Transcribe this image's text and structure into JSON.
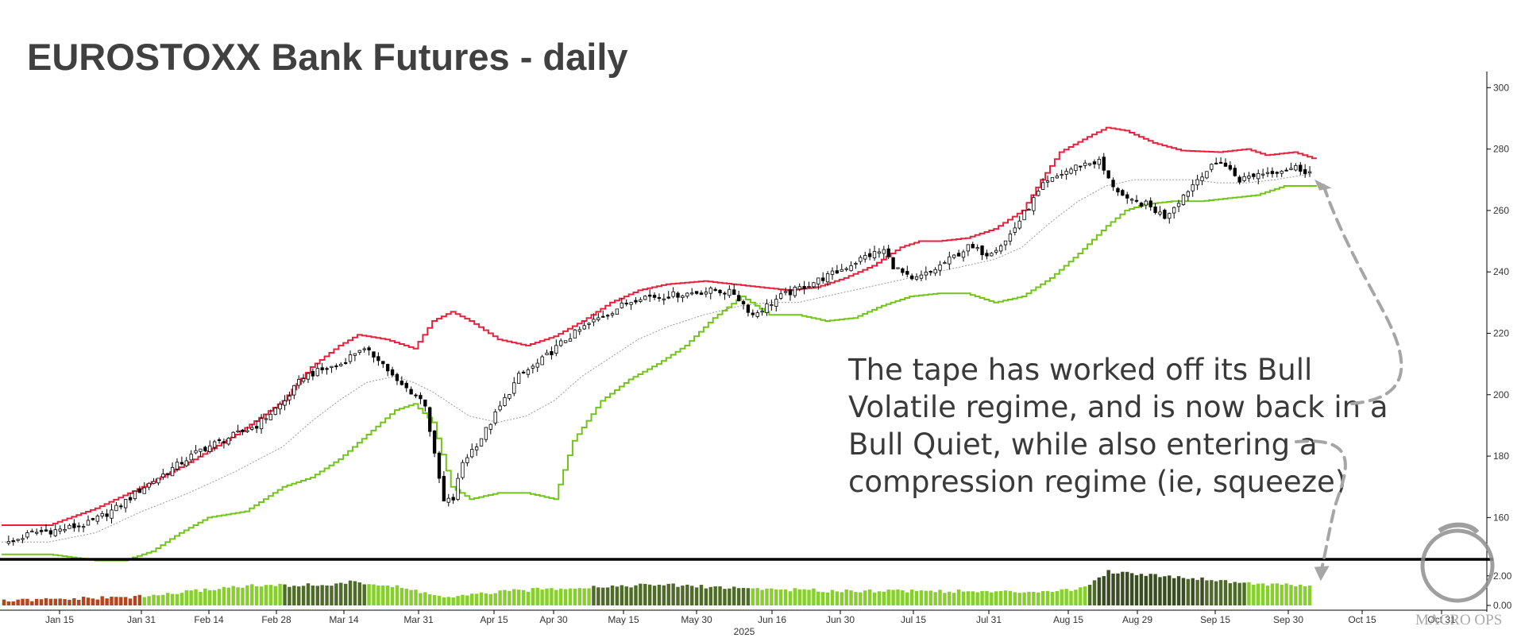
{
  "chart_data": {
    "type": "candlestick",
    "title": "EUROSTOXX Bank Futures - daily",
    "year_label": "2025",
    "ylim": [
      150,
      305
    ],
    "y_ticks": [
      160,
      180,
      200,
      220,
      240,
      260,
      280,
      300
    ],
    "x_ticks": [
      "Jan 15",
      "Jan 31",
      "Feb 14",
      "Feb 28",
      "Mar 14",
      "Mar 31",
      "Apr 15",
      "Apr 30",
      "May 15",
      "May 30",
      "Jun 16",
      "Jun 30",
      "Jul 15",
      "Jul 31",
      "Aug 15",
      "Aug 29",
      "Sep 15",
      "Sep 30",
      "Oct 15",
      "Oct 31"
    ],
    "upper_band_anchors": [
      [
        0,
        157.5
      ],
      [
        10,
        157.5
      ],
      [
        20,
        163
      ],
      [
        30,
        170
      ],
      [
        40,
        178
      ],
      [
        50,
        187
      ],
      [
        60,
        198
      ],
      [
        66,
        209
      ],
      [
        72,
        216
      ],
      [
        76,
        219.5
      ],
      [
        82,
        218
      ],
      [
        88,
        215
      ],
      [
        92,
        224
      ],
      [
        96,
        227
      ],
      [
        100,
        224
      ],
      [
        106,
        218
      ],
      [
        112,
        216
      ],
      [
        118,
        219
      ],
      [
        124,
        224
      ],
      [
        130,
        230
      ],
      [
        136,
        234
      ],
      [
        142,
        236
      ],
      [
        150,
        237
      ],
      [
        156,
        236
      ],
      [
        162,
        235
      ],
      [
        168,
        234
      ],
      [
        174,
        235
      ],
      [
        180,
        238
      ],
      [
        186,
        242
      ],
      [
        192,
        248
      ],
      [
        196,
        250
      ],
      [
        200,
        250
      ],
      [
        206,
        251
      ],
      [
        212,
        254
      ],
      [
        218,
        260
      ],
      [
        222,
        270
      ],
      [
        226,
        279
      ],
      [
        232,
        284
      ],
      [
        236,
        287
      ],
      [
        240,
        286
      ],
      [
        246,
        282
      ],
      [
        252,
        279.5
      ],
      [
        260,
        279
      ],
      [
        266,
        280
      ],
      [
        270,
        278
      ],
      [
        276,
        279
      ],
      [
        280,
        277
      ]
    ],
    "lower_band_anchors": [
      [
        0,
        148
      ],
      [
        10,
        148
      ],
      [
        20,
        146
      ],
      [
        26,
        146
      ],
      [
        32,
        149
      ],
      [
        38,
        155
      ],
      [
        44,
        160
      ],
      [
        52,
        162
      ],
      [
        60,
        170
      ],
      [
        66,
        173
      ],
      [
        72,
        179
      ],
      [
        78,
        187
      ],
      [
        84,
        195
      ],
      [
        88,
        197
      ],
      [
        92,
        191
      ],
      [
        96,
        170
      ],
      [
        100,
        166
      ],
      [
        106,
        168
      ],
      [
        112,
        168
      ],
      [
        118,
        166
      ],
      [
        122,
        185
      ],
      [
        128,
        198
      ],
      [
        134,
        205
      ],
      [
        140,
        210
      ],
      [
        146,
        216
      ],
      [
        152,
        225
      ],
      [
        158,
        232
      ],
      [
        164,
        226
      ],
      [
        170,
        226
      ],
      [
        176,
        224
      ],
      [
        182,
        225
      ],
      [
        188,
        229
      ],
      [
        194,
        232
      ],
      [
        200,
        233
      ],
      [
        206,
        233
      ],
      [
        212,
        230
      ],
      [
        218,
        232
      ],
      [
        224,
        238
      ],
      [
        230,
        246
      ],
      [
        236,
        255
      ],
      [
        240,
        260
      ],
      [
        244,
        262
      ],
      [
        250,
        263
      ],
      [
        256,
        263
      ],
      [
        262,
        264
      ],
      [
        268,
        265
      ],
      [
        274,
        268
      ],
      [
        280,
        268
      ]
    ],
    "ma_anchors": [
      [
        0,
        152
      ],
      [
        10,
        152
      ],
      [
        20,
        155
      ],
      [
        30,
        162
      ],
      [
        40,
        168
      ],
      [
        50,
        175
      ],
      [
        60,
        183
      ],
      [
        66,
        191
      ],
      [
        72,
        198
      ],
      [
        78,
        204
      ],
      [
        84,
        206
      ],
      [
        88,
        204
      ],
      [
        92,
        201
      ],
      [
        96,
        197
      ],
      [
        100,
        193
      ],
      [
        106,
        191
      ],
      [
        112,
        193
      ],
      [
        118,
        198
      ],
      [
        124,
        206
      ],
      [
        130,
        212
      ],
      [
        136,
        218
      ],
      [
        142,
        222
      ],
      [
        150,
        226
      ],
      [
        158,
        229
      ],
      [
        164,
        230
      ],
      [
        170,
        230
      ],
      [
        176,
        232
      ],
      [
        182,
        234
      ],
      [
        188,
        236
      ],
      [
        194,
        238
      ],
      [
        200,
        240
      ],
      [
        206,
        242
      ],
      [
        212,
        244
      ],
      [
        218,
        248
      ],
      [
        224,
        256
      ],
      [
        230,
        263
      ],
      [
        236,
        268
      ],
      [
        242,
        270
      ],
      [
        248,
        270
      ],
      [
        254,
        270
      ],
      [
        260,
        269
      ],
      [
        266,
        269
      ],
      [
        272,
        270
      ],
      [
        276,
        271
      ],
      [
        280,
        272
      ]
    ],
    "close_anchors": [
      [
        0,
        151
      ],
      [
        6,
        155
      ],
      [
        12,
        156
      ],
      [
        18,
        158
      ],
      [
        24,
        163
      ],
      [
        30,
        170
      ],
      [
        36,
        176
      ],
      [
        42,
        182
      ],
      [
        48,
        186
      ],
      [
        54,
        190
      ],
      [
        60,
        198
      ],
      [
        64,
        206
      ],
      [
        68,
        208
      ],
      [
        72,
        210
      ],
      [
        76,
        215
      ],
      [
        80,
        212
      ],
      [
        84,
        204
      ],
      [
        88,
        200
      ],
      [
        90,
        197
      ],
      [
        92,
        180
      ],
      [
        94,
        165
      ],
      [
        96,
        166
      ],
      [
        98,
        178
      ],
      [
        102,
        186
      ],
      [
        106,
        196
      ],
      [
        110,
        206
      ],
      [
        114,
        210
      ],
      [
        120,
        218
      ],
      [
        126,
        224
      ],
      [
        132,
        229
      ],
      [
        136,
        232
      ],
      [
        140,
        232
      ],
      [
        146,
        233
      ],
      [
        152,
        234
      ],
      [
        156,
        233
      ],
      [
        160,
        226
      ],
      [
        166,
        232
      ],
      [
        172,
        236
      ],
      [
        178,
        240
      ],
      [
        184,
        245
      ],
      [
        188,
        247
      ],
      [
        190,
        242
      ],
      [
        194,
        237
      ],
      [
        198,
        240
      ],
      [
        202,
        244
      ],
      [
        206,
        248
      ],
      [
        210,
        246
      ],
      [
        214,
        250
      ],
      [
        218,
        259
      ],
      [
        222,
        268
      ],
      [
        226,
        272
      ],
      [
        230,
        275
      ],
      [
        234,
        276
      ],
      [
        236,
        270
      ],
      [
        240,
        263
      ],
      [
        244,
        262
      ],
      [
        248,
        258
      ],
      [
        252,
        265
      ],
      [
        256,
        272
      ],
      [
        260,
        276
      ],
      [
        264,
        270
      ],
      [
        268,
        272
      ],
      [
        272,
        273
      ],
      [
        276,
        274
      ],
      [
        280,
        272
      ]
    ],
    "indicator_anchors": [
      [
        0,
        0.3
      ],
      [
        30,
        0.6
      ],
      [
        50,
        1.3
      ],
      [
        70,
        1.4
      ],
      [
        75,
        1.6
      ],
      [
        85,
        1.2
      ],
      [
        95,
        0.5
      ],
      [
        105,
        0.9
      ],
      [
        120,
        1.2
      ],
      [
        140,
        1.4
      ],
      [
        155,
        1.2
      ],
      [
        175,
        1.0
      ],
      [
        195,
        1.0
      ],
      [
        215,
        0.9
      ],
      [
        230,
        1.1
      ],
      [
        236,
        2.3
      ],
      [
        244,
        2.1
      ],
      [
        256,
        1.8
      ],
      [
        266,
        1.5
      ],
      [
        280,
        1.3
      ]
    ],
    "indicator_ylim": [
      0,
      2.9
    ],
    "indicator_ticks": [
      "2.00",
      "0.00"
    ],
    "n_bars": 280
  },
  "colors": {
    "upper_band": "#e8203c",
    "lower_band": "#72c31a",
    "moving_average": "#9a9a9a",
    "candle": "#000000",
    "indicator_dark": "#3a4d22",
    "indicator_mid": "#4f6b28",
    "indicator_bright": "#86d02a",
    "indicator_low": "#b5451b",
    "arrow": "#a6a6a6"
  },
  "annotation": {
    "lines": [
      "The tape has worked off its Bull",
      "Volatile regime, and is now back in a",
      "Bull Quiet, while also entering a",
      "compression regime (ie, squeeze)"
    ]
  },
  "watermark": {
    "text": "MACRO OPS",
    "icon": "ouroboros-logo-icon"
  }
}
